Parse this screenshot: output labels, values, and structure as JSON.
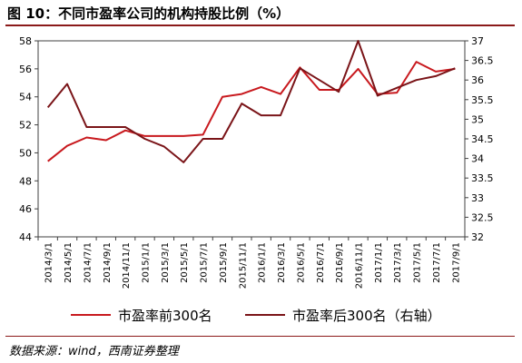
{
  "title": "图 10：不同市盈率公司的机构持股比例（%）",
  "source": "数据来源：wind，西南证券整理",
  "colors": {
    "series_front": "#c8191e",
    "series_back": "#7a1418",
    "rule": "#8b1a1a",
    "axis": "#404040"
  },
  "chart_data": {
    "type": "line",
    "categories": [
      "2014/3/1",
      "2014/5/1",
      "2014/7/1",
      "2014/9/1",
      "2014/11/1",
      "2015/1/1",
      "2015/3/1",
      "2015/5/1",
      "2015/7/1",
      "2015/9/1",
      "2015/11/1",
      "2016/1/1",
      "2016/3/1",
      "2016/5/1",
      "2016/7/1",
      "2016/9/1",
      "2016/11/1",
      "2017/1/1",
      "2017/3/1",
      "2017/5/1",
      "2017/7/1",
      "2017/9/1"
    ],
    "left_axis": {
      "ylim": [
        44,
        58
      ],
      "ticks": [
        "44",
        "46",
        "48",
        "50",
        "52",
        "54",
        "56",
        "58"
      ]
    },
    "right_axis": {
      "ylim": [
        32,
        37
      ],
      "ticks": [
        "32",
        "32.5",
        "33",
        "33.5",
        "34",
        "34.5",
        "35",
        "35.5",
        "36",
        "36.5",
        "37"
      ]
    },
    "grid": false,
    "legend_position": "bottom",
    "series": [
      {
        "name": "市盈率前300名",
        "axis": "left",
        "values": [
          49.4,
          50.5,
          51.1,
          50.9,
          51.6,
          51.2,
          51.2,
          51.2,
          51.3,
          54.0,
          54.2,
          54.7,
          54.2,
          56.1,
          54.5,
          54.5,
          56.0,
          54.2,
          54.3,
          56.5,
          55.8,
          56.0
        ]
      },
      {
        "name": "市盈率后300名（右轴）",
        "axis": "right",
        "values": [
          35.3,
          35.9,
          34.8,
          34.8,
          34.8,
          34.5,
          34.3,
          33.9,
          34.5,
          34.5,
          35.4,
          35.1,
          35.1,
          36.3,
          36.0,
          35.7,
          37.0,
          35.6,
          35.8,
          36.0,
          36.1,
          36.3
        ]
      }
    ]
  }
}
